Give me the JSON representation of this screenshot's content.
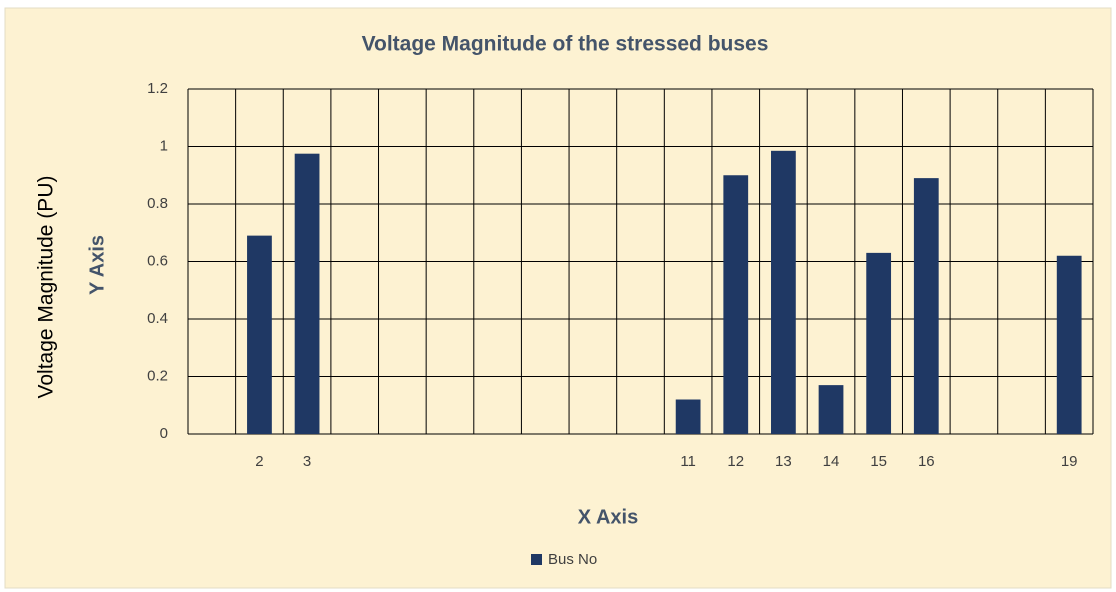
{
  "chart_data": {
    "type": "bar",
    "title": "Voltage Magnitude of the stressed buses",
    "x_label": "X Axis",
    "y_labels": [
      "Voltage Magnitude (PU)",
      "Y Axis"
    ],
    "categories": [
      null,
      "2",
      "3",
      null,
      null,
      null,
      null,
      null,
      null,
      null,
      "11",
      "12",
      "13",
      "14",
      "15",
      "16",
      null,
      null,
      "19"
    ],
    "series": [
      {
        "name": "Bus No",
        "color": "#1f3864",
        "values": [
          null,
          0.69,
          0.975,
          null,
          null,
          null,
          null,
          null,
          null,
          null,
          0.12,
          0.9,
          0.985,
          0.17,
          0.63,
          0.89,
          null,
          null,
          0.62
        ]
      }
    ],
    "ylim": [
      0,
      1.2
    ],
    "yticks": [
      0,
      0.2,
      0.4,
      0.6,
      0.8,
      1,
      1.2
    ],
    "grid": true,
    "legend": "bottom"
  }
}
